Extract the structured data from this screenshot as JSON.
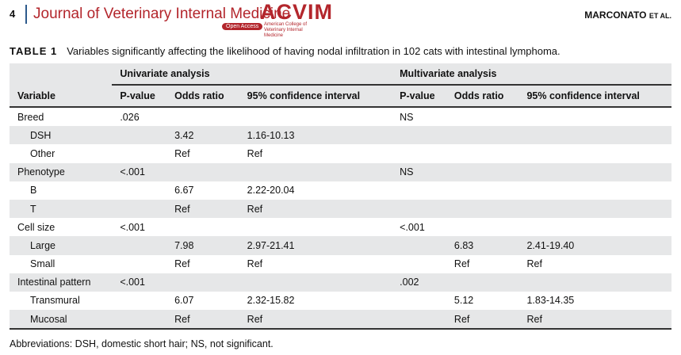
{
  "header": {
    "page": "4",
    "journal": "Journal of Veterinary Internal Medicine",
    "badge": "Open Access",
    "logo": "ACVIM",
    "logo_subtitle": "American College of Veterinary Internal Medicine",
    "author": "MARCONATO",
    "author_suffix": "ET AL."
  },
  "table": {
    "label": "TABLE 1",
    "caption": "Variables significantly affecting the likelihood of having nodal infiltration in 102 cats with intestinal lymphoma.",
    "group_headers": [
      "Univariate analysis",
      "Multivariate analysis"
    ],
    "columns": [
      "Variable",
      "P-value",
      "Odds ratio",
      "95% confidence interval",
      "P-value",
      "Odds ratio",
      "95% confidence interval"
    ],
    "groups": [
      {
        "label": "Breed",
        "values": [
          ".026",
          null,
          null,
          "NS",
          null,
          null
        ],
        "levels": [
          {
            "label": "DSH",
            "values": [
              null,
              "3.42",
              "1.16-10.13",
              null,
              null,
              null
            ]
          },
          {
            "label": "Other",
            "values": [
              null,
              "Ref",
              "Ref",
              null,
              null,
              null
            ]
          }
        ]
      },
      {
        "label": "Phenotype",
        "values": [
          "<.001",
          null,
          null,
          "NS",
          null,
          null
        ],
        "levels": [
          {
            "label": "B",
            "values": [
              null,
              "6.67",
              "2.22-20.04",
              null,
              null,
              null
            ]
          },
          {
            "label": "T",
            "values": [
              null,
              "Ref",
              "Ref",
              null,
              null,
              null
            ]
          }
        ]
      },
      {
        "label": "Cell size",
        "values": [
          "<.001",
          null,
          null,
          "<.001",
          null,
          null
        ],
        "levels": [
          {
            "label": "Large",
            "values": [
              null,
              "7.98",
              "2.97-21.41",
              null,
              "6.83",
              "2.41-19.40"
            ]
          },
          {
            "label": "Small",
            "values": [
              null,
              "Ref",
              "Ref",
              null,
              "Ref",
              "Ref"
            ]
          }
        ]
      },
      {
        "label": "Intestinal pattern",
        "values": [
          "<.001",
          null,
          null,
          ".002",
          null,
          null
        ],
        "levels": [
          {
            "label": "Transmural",
            "values": [
              null,
              "6.07",
              "2.32-15.82",
              null,
              "5.12",
              "1.83-14.35"
            ]
          },
          {
            "label": "Mucosal",
            "values": [
              null,
              "Ref",
              "Ref",
              null,
              "Ref",
              "Ref"
            ]
          }
        ]
      }
    ],
    "footnote": "Abbreviations: DSH, domestic short hair; NS, not significant."
  }
}
